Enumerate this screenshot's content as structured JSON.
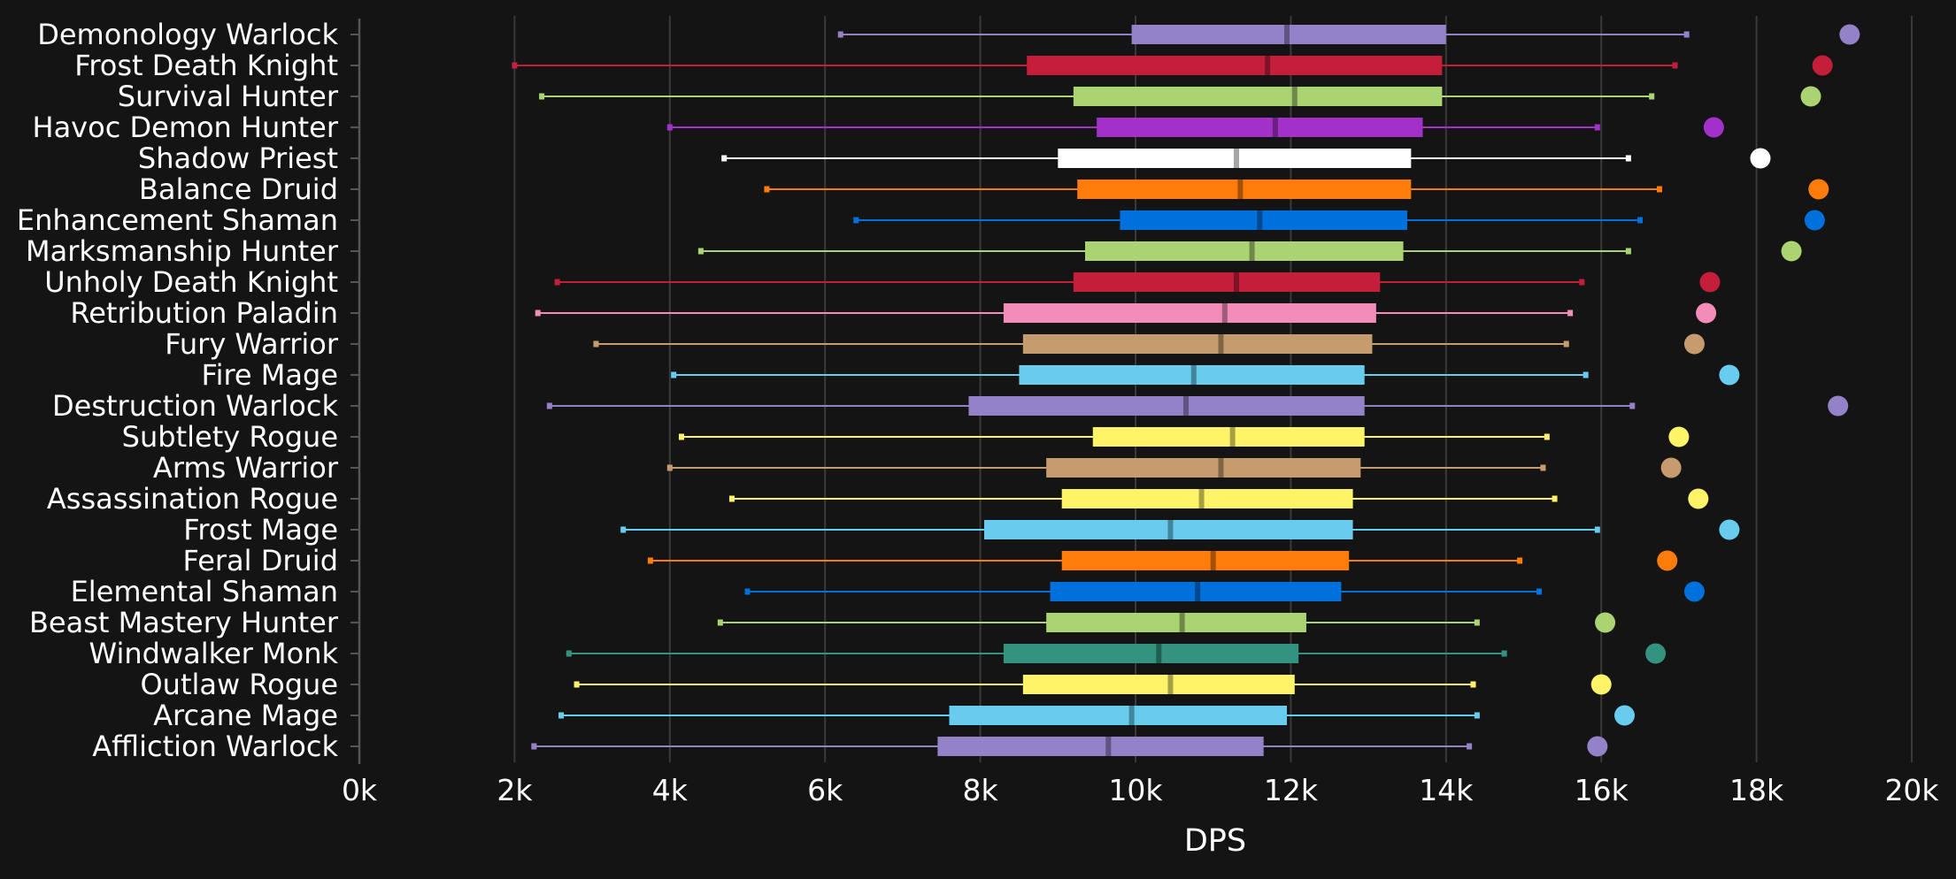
{
  "chart_data": {
    "type": "box",
    "orientation": "horizontal",
    "xlabel": "DPS",
    "xlim": [
      0,
      20000
    ],
    "xticks": [
      0,
      2000,
      4000,
      6000,
      8000,
      10000,
      12000,
      14000,
      16000,
      18000,
      20000
    ],
    "xtick_labels": [
      "0k",
      "2k",
      "4k",
      "6k",
      "8k",
      "10k",
      "12k",
      "14k",
      "16k",
      "18k",
      "20k"
    ],
    "grid": "vertical",
    "background": "#141414",
    "series": [
      {
        "name": "Demonology Warlock",
        "color": "#9482c9",
        "min": 6200,
        "q1": 9950,
        "median": 11950,
        "q3": 14000,
        "max": 17100,
        "top": 19200
      },
      {
        "name": "Frost Death Knight",
        "color": "#c41e3a",
        "min": 2000,
        "q1": 8600,
        "median": 11700,
        "q3": 13950,
        "max": 16950,
        "top": 18850
      },
      {
        "name": "Survival Hunter",
        "color": "#aad372",
        "min": 2350,
        "q1": 9200,
        "median": 12050,
        "q3": 13950,
        "max": 16650,
        "top": 18700
      },
      {
        "name": "Havoc Demon Hunter",
        "color": "#a330c9",
        "min": 4000,
        "q1": 9500,
        "median": 11800,
        "q3": 13700,
        "max": 15950,
        "top": 17450
      },
      {
        "name": "Shadow Priest",
        "color": "#ffffff",
        "min": 4700,
        "q1": 9000,
        "median": 11300,
        "q3": 13550,
        "max": 16350,
        "top": 18050
      },
      {
        "name": "Balance Druid",
        "color": "#ff7c0a",
        "min": 5250,
        "q1": 9250,
        "median": 11350,
        "q3": 13550,
        "max": 16750,
        "top": 18800
      },
      {
        "name": "Enhancement Shaman",
        "color": "#0070dd",
        "min": 6400,
        "q1": 9800,
        "median": 11600,
        "q3": 13500,
        "max": 16500,
        "top": 18750
      },
      {
        "name": "Marksmanship Hunter",
        "color": "#aad372",
        "min": 4400,
        "q1": 9350,
        "median": 11500,
        "q3": 13450,
        "max": 16350,
        "top": 18450
      },
      {
        "name": "Unholy Death Knight",
        "color": "#c41e3a",
        "min": 2550,
        "q1": 9200,
        "median": 11300,
        "q3": 13150,
        "max": 15750,
        "top": 17400
      },
      {
        "name": "Retribution Paladin",
        "color": "#f48cba",
        "min": 2300,
        "q1": 8300,
        "median": 11150,
        "q3": 13100,
        "max": 15600,
        "top": 17350
      },
      {
        "name": "Fury Warrior",
        "color": "#c69b6d",
        "min": 3050,
        "q1": 8550,
        "median": 11100,
        "q3": 13050,
        "max": 15550,
        "top": 17200
      },
      {
        "name": "Fire Mage",
        "color": "#68ccef",
        "min": 4050,
        "q1": 8500,
        "median": 10750,
        "q3": 12950,
        "max": 15800,
        "top": 17650
      },
      {
        "name": "Destruction Warlock",
        "color": "#9482c9",
        "min": 2450,
        "q1": 7850,
        "median": 10650,
        "q3": 12950,
        "max": 16400,
        "top": 19050
      },
      {
        "name": "Subtlety Rogue",
        "color": "#fff468",
        "min": 4150,
        "q1": 9450,
        "median": 11250,
        "q3": 12950,
        "max": 15300,
        "top": 17000
      },
      {
        "name": "Arms Warrior",
        "color": "#c69b6d",
        "min": 4000,
        "q1": 8850,
        "median": 11100,
        "q3": 12900,
        "max": 15250,
        "top": 16900
      },
      {
        "name": "Assassination Rogue",
        "color": "#fff468",
        "min": 4800,
        "q1": 9050,
        "median": 10850,
        "q3": 12800,
        "max": 15400,
        "top": 17250
      },
      {
        "name": "Frost Mage",
        "color": "#68ccef",
        "min": 3400,
        "q1": 8050,
        "median": 10450,
        "q3": 12800,
        "max": 15950,
        "top": 17650
      },
      {
        "name": "Feral Druid",
        "color": "#ff7c0a",
        "min": 3750,
        "q1": 9050,
        "median": 11000,
        "q3": 12750,
        "max": 14950,
        "top": 16850
      },
      {
        "name": "Elemental Shaman",
        "color": "#0070dd",
        "min": 5000,
        "q1": 8900,
        "median": 10800,
        "q3": 12650,
        "max": 15200,
        "top": 17200
      },
      {
        "name": "Beast Mastery Hunter",
        "color": "#aad372",
        "min": 4650,
        "q1": 8850,
        "median": 10600,
        "q3": 12200,
        "max": 14400,
        "top": 16050
      },
      {
        "name": "Windwalker Monk",
        "color": "#33937f",
        "min": 2700,
        "q1": 8300,
        "median": 10300,
        "q3": 12100,
        "max": 14750,
        "top": 16700
      },
      {
        "name": "Outlaw Rogue",
        "color": "#fff468",
        "min": 2800,
        "q1": 8550,
        "median": 10450,
        "q3": 12050,
        "max": 14350,
        "top": 16000
      },
      {
        "name": "Arcane Mage",
        "color": "#68ccef",
        "min": 2600,
        "q1": 7600,
        "median": 9950,
        "q3": 11950,
        "max": 14400,
        "top": 16300
      },
      {
        "name": "Affliction Warlock",
        "color": "#9482c9",
        "min": 2250,
        "q1": 7450,
        "median": 9650,
        "q3": 11650,
        "max": 14300,
        "top": 15950
      }
    ]
  }
}
